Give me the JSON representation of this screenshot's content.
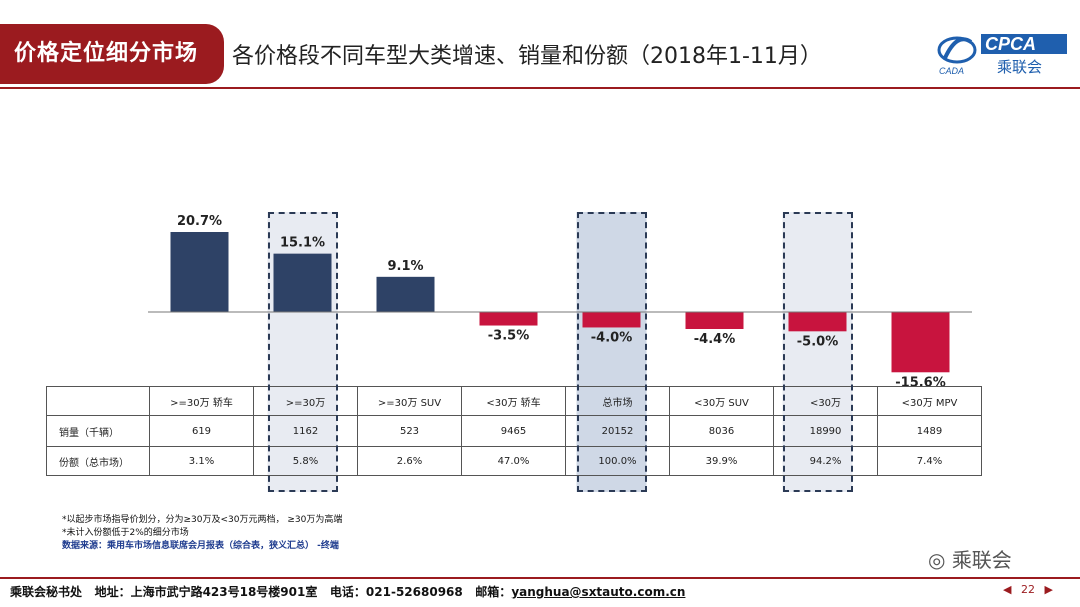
{
  "header": {
    "section_tag": "价格定位细分市场",
    "title": "各价格段不同车型大类增速、销量和份额（2018年1-11月）",
    "logo_text": "CPCA",
    "logo_subtext": "乘联会",
    "logo_caption": "CADA"
  },
  "colors": {
    "positive": "#2e4266",
    "negative": "#c8143e",
    "accent": "#9b1b1f",
    "highlight_fill": "#e8ebf2",
    "highlight_fill_total": "#cfd8e6"
  },
  "chart_data": {
    "type": "bar",
    "categories": [
      ">=30万 轿车",
      ">=30万",
      ">=30万 SUV",
      "<30万 轿车",
      "总市场",
      "<30万 SUV",
      "<30万",
      "<30万 MPV"
    ],
    "values": [
      20.7,
      15.1,
      9.1,
      -3.5,
      -4.0,
      -4.4,
      -5.0,
      -15.6
    ],
    "value_labels": [
      "20.7%",
      "15.1%",
      "9.1%",
      "-3.5%",
      "-4.0%",
      "-4.4%",
      "-5.0%",
      "-15.6%"
    ],
    "ylim": [
      -16,
      21
    ],
    "highlighted": [
      1,
      4,
      6
    ]
  },
  "table": {
    "headers": [
      "",
      ">=30万 轿车",
      ">=30万",
      ">=30万 SUV",
      "<30万 轿车",
      "总市场",
      "<30万 SUV",
      "<30万",
      "<30万 MPV"
    ],
    "rows": [
      [
        "销量（千辆）",
        "619",
        "1162",
        "523",
        "9465",
        "20152",
        "8036",
        "18990",
        "1489"
      ],
      [
        "份额（总市场）",
        "3.1%",
        "5.8%",
        "2.6%",
        "47.0%",
        "100.0%",
        "39.9%",
        "94.2%",
        "7.4%"
      ]
    ]
  },
  "notes": {
    "line1": "*以起步市场指导价划分，分为≥30万及<30万元两档， ≥30万为高端",
    "line2": "*未计入份额低于2%的细分市场",
    "source": "数据来源：乘用车市场信息联席会月报表（综合表，狭义汇总）  -终端"
  },
  "watermark": "乘联会",
  "footer": {
    "org": "乘联会秘书处",
    "address": "地址：上海市武宁路423号18号楼901室",
    "phone": "电话：021-52680968",
    "email_label": "邮箱：",
    "email": "yanghua@sxtauto.com.cn"
  },
  "pager": {
    "prev": "◀",
    "page": "22",
    "next": "▶"
  }
}
